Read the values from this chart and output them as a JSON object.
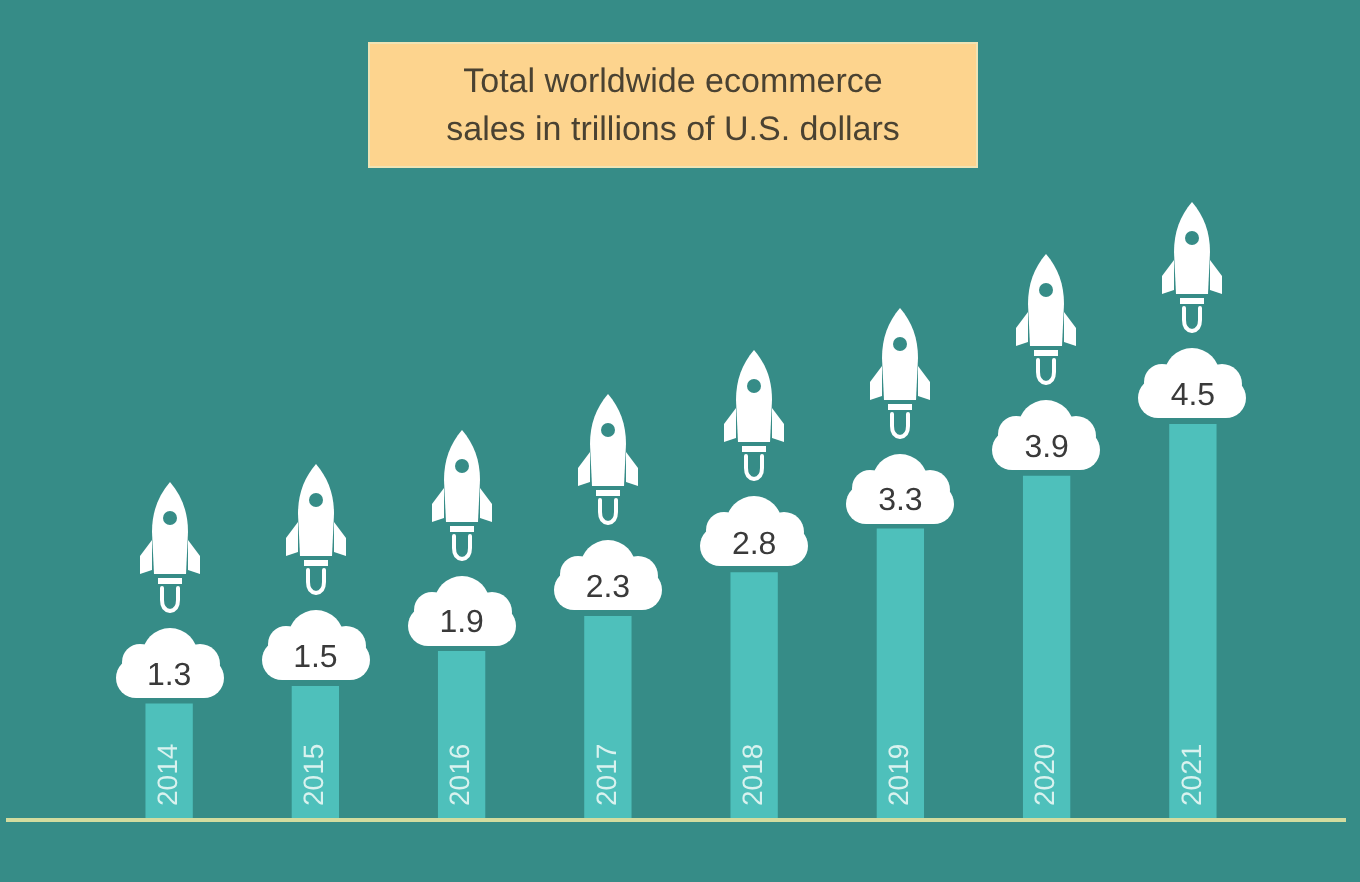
{
  "chart_data": {
    "type": "bar",
    "title": "Total worldwide ecommerce\nsales in trillions of U.S. dollars",
    "categories": [
      "2014",
      "2015",
      "2016",
      "2017",
      "2018",
      "2019",
      "2020",
      "2021"
    ],
    "values": [
      1.3,
      1.5,
      1.9,
      2.3,
      2.8,
      3.3,
      3.9,
      4.5
    ],
    "color": "#4ec0bb",
    "data_labels": true
  }
}
